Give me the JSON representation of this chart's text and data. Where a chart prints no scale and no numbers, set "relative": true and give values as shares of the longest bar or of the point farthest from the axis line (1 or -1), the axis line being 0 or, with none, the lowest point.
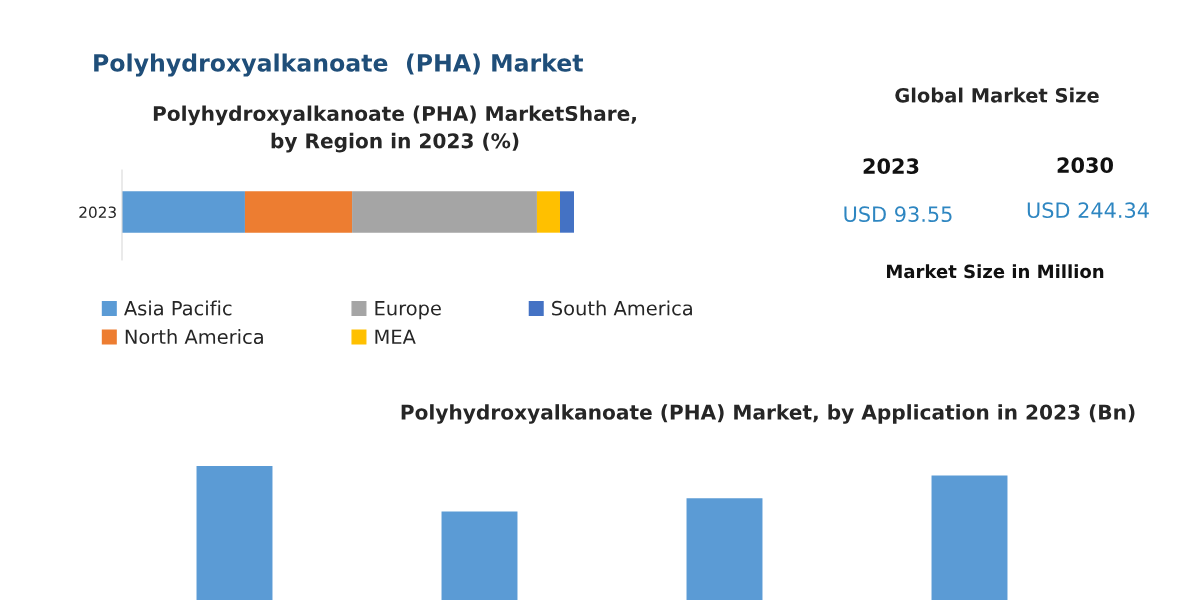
{
  "chart_data": [
    {
      "type": "bar",
      "title": "Polyhydroxyalkanoate  (PHA) Market",
      "subtitle": "Polyhydroxyalkanoate (PHA) MarketShare,\nby Region in 2023 (%)",
      "categories": [
        "2023"
      ],
      "orientation": "horizontal",
      "stacked": true,
      "relative": true,
      "legend": "bottom",
      "series": [
        {
          "name": "Asia Pacific",
          "color": "#5b9bd5",
          "values": [
            0.272
          ]
        },
        {
          "name": "North America",
          "color": "#ed7d31",
          "values": [
            0.237
          ]
        },
        {
          "name": "Europe",
          "color": "#a5a5a5",
          "values": [
            0.409
          ]
        },
        {
          "name": "MEA",
          "color": "#ffc000",
          "values": [
            0.051
          ]
        },
        {
          "name": "South America",
          "color": "#4472c4",
          "values": [
            0.031
          ]
        }
      ]
    },
    {
      "type": "other",
      "title": "Global Market Size",
      "annotations": [
        "2023",
        "2030",
        "USD 93.55",
        "USD 244.34",
        "Market Size in Million"
      ]
    },
    {
      "type": "bar",
      "title": "Polyhydroxyalkanoate (PHA) Market, by Application in 2023 (Bn)",
      "categories": [
        null,
        null,
        null,
        null
      ],
      "relative": true,
      "color": "#5b9bd5",
      "values": [
        1,
        0.66,
        0.76,
        0.93
      ]
    }
  ]
}
